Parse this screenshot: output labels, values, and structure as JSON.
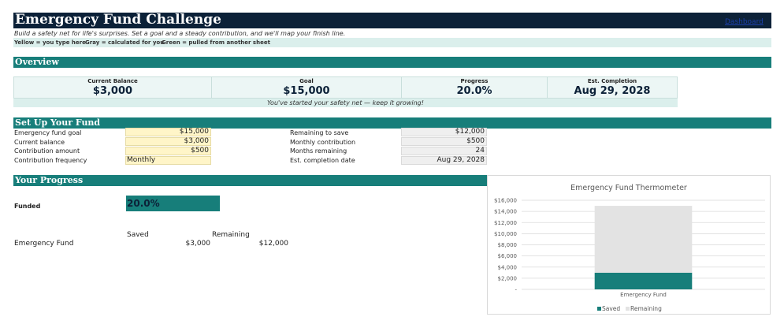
{
  "header": {
    "title": "Emergency Fund Challenge",
    "link_label": "Dashboard",
    "subtitle": "Build a safety net for life's surprises. Set a goal and a steady contribution, and we'll map your finish line."
  },
  "legend": {
    "yellow": "Yellow = you type here",
    "gray": "Gray = calculated for you",
    "green": "Green = pulled from another sheet"
  },
  "overview": {
    "section_title": "Overview",
    "current_balance": {
      "label": "Current Balance",
      "value": "$3,000"
    },
    "goal": {
      "label": "Goal",
      "value": "$15,000"
    },
    "progress": {
      "label": "Progress",
      "value": "20.0%"
    },
    "completion": {
      "label": "Est. Completion",
      "value": "Aug 29, 2028"
    },
    "note": "You've started your safety net — keep it growing!"
  },
  "setup": {
    "section_title": "Set Up Your Fund",
    "inputs": [
      {
        "label": "Emergency fund goal",
        "value": "$15,000"
      },
      {
        "label": "Current balance",
        "value": "$3,000"
      },
      {
        "label": "Contribution amount",
        "value": "$500"
      },
      {
        "label": "Contribution frequency",
        "value": "Monthly"
      }
    ],
    "calculated": [
      {
        "label": "Remaining to save",
        "value": "$12,000"
      },
      {
        "label": "Monthly contribution",
        "value": "$500"
      },
      {
        "label": "Months remaining",
        "value": "24"
      },
      {
        "label": "Est. completion date",
        "value": "Aug 29, 2028"
      }
    ]
  },
  "progress": {
    "section_title": "Your Progress",
    "funded_label": "Funded",
    "funded_value": "20.0%",
    "col_saved": "Saved",
    "col_remaining": "Remaining",
    "row_label": "Emergency Fund",
    "saved": "$3,000",
    "remaining": "$12,000"
  },
  "colors": {
    "saved": "#177e7a",
    "remaining": "#e3e3e3",
    "navy": "#0c2138",
    "teal": "#177e7a"
  },
  "chart_data": {
    "type": "bar",
    "stacked": true,
    "title": "Emergency Fund Thermometer",
    "categories": [
      "Emergency Fund"
    ],
    "series": [
      {
        "name": "Saved",
        "values": [
          3000
        ],
        "color": "#177e7a"
      },
      {
        "name": "Remaining",
        "values": [
          12000
        ],
        "color": "#e3e3e3"
      }
    ],
    "ylim": [
      0,
      16000
    ],
    "y_ticks": [
      0,
      2000,
      4000,
      6000,
      8000,
      10000,
      12000,
      14000,
      16000
    ],
    "y_tick_labels": [
      "-",
      "$2,000",
      "$4,000",
      "$6,000",
      "$8,000",
      "$10,000",
      "$12,000",
      "$14,000",
      "$16,000"
    ],
    "grid": true,
    "legend_position": "bottom"
  }
}
